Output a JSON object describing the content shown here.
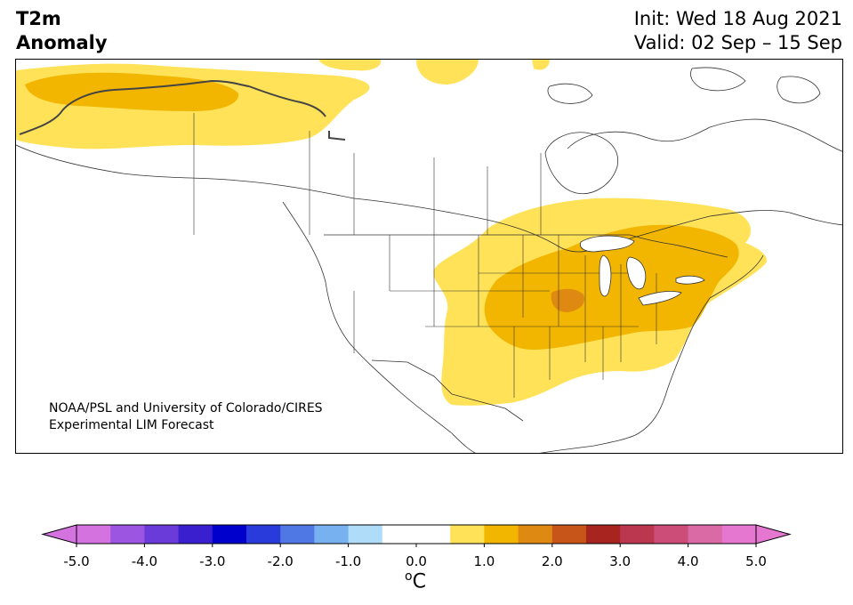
{
  "title": {
    "line1": "T2m",
    "line2": "Anomaly"
  },
  "dates": {
    "init": "Init: Wed 18 Aug 2021",
    "valid": "Valid: 02 Sep – 15 Sep"
  },
  "credit": {
    "line1": "NOAA/PSL and University of Colorado/CIRES",
    "line2": "Experimental LIM Forecast"
  },
  "colorbar": {
    "ticks": [
      "-5.0",
      "-4.0",
      "-3.0",
      "-2.0",
      "-1.0",
      "0.0",
      "1.0",
      "2.0",
      "3.0",
      "4.0",
      "5.0"
    ],
    "unit_base": "C",
    "unit_sup": "o",
    "colors": [
      "#d472e0",
      "#9c55e0",
      "#6a3bd9",
      "#3a1fcf",
      "#0000cc",
      "#2a3bdb",
      "#4f78e4",
      "#78b1ef",
      "#aedcf9",
      "#ffffff",
      "#ffffff",
      "#ffe257",
      "#f2b600",
      "#de8a12",
      "#c75519",
      "#a8251f",
      "#bb374f",
      "#cc4e78",
      "#d96aa6",
      "#e677d1"
    ],
    "under_color": "#d472e0",
    "over_color": "#e677d1"
  },
  "legend_colors": {
    "light": "#ffe257",
    "mid": "#f2b600",
    "dark": "#de8a12"
  }
}
